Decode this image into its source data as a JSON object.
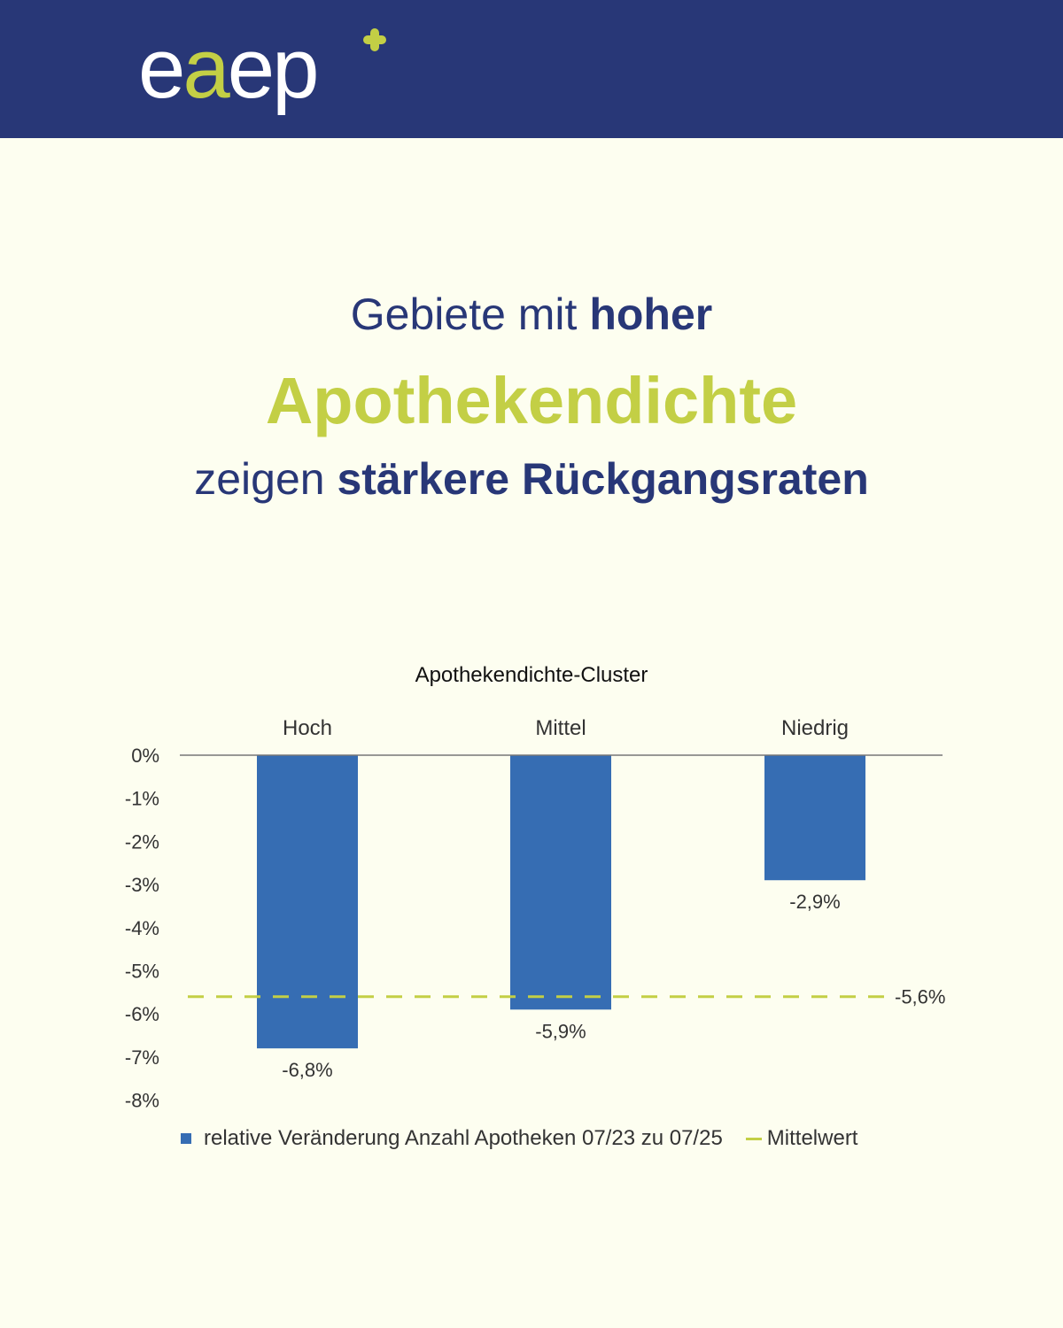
{
  "brand": {
    "name_part1": "e",
    "name_accent": "a",
    "name_part2": "ep",
    "colors": {
      "navy": "#283777",
      "lime": "#c3cf45",
      "background": "#fdfef0",
      "bar": "#366db3"
    }
  },
  "headline": {
    "line1_normal": "Gebiete mit ",
    "line1_bold": "hoher",
    "line2": "Apothekendichte",
    "line3_normal": "zeigen ",
    "line3_bold": "stärkere Rückgangsraten"
  },
  "chart_data": {
    "type": "bar",
    "title": "Apothekendichte-Cluster",
    "categories": [
      "Hoch",
      "Mittel",
      "Niedrig"
    ],
    "series": [
      {
        "name": "relative Veränderung Anzahl Apotheken 07/23 zu 07/25",
        "values": [
          -6.8,
          -5.9,
          -2.9
        ]
      }
    ],
    "value_labels": [
      "-6,8%",
      "-5,9%",
      "-2,9%"
    ],
    "reference_line": {
      "name": "Mittelwert",
      "value": -5.6,
      "label": "-5,6%"
    },
    "ylim": [
      -8,
      0
    ],
    "yticks": [
      0,
      -1,
      -2,
      -3,
      -4,
      -5,
      -6,
      -7,
      -8
    ],
    "ytick_labels": [
      "0%",
      "-1%",
      "-2%",
      "-3%",
      "-4%",
      "-5%",
      "-6%",
      "-7%",
      "-8%"
    ],
    "xlabel": "",
    "ylabel": "",
    "legend_position": "bottom",
    "grid": false
  },
  "legend": {
    "series_label": "relative Veränderung Anzahl Apotheken 07/23 zu 07/25",
    "mean_label": "Mittelwert"
  }
}
